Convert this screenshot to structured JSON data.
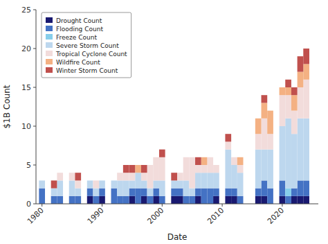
{
  "chart_data": {
    "type": "bar",
    "stacked": true,
    "legend": "upper left",
    "grid": false,
    "xlabel": "Date",
    "ylabel": "$1B Count",
    "x": [
      1980,
      1982,
      1983,
      1985,
      1986,
      1988,
      1989,
      1990,
      1992,
      1993,
      1994,
      1995,
      1996,
      1997,
      1998,
      1999,
      2000,
      2002,
      2003,
      2004,
      2005,
      2006,
      2007,
      2008,
      2009,
      2011,
      2012,
      2013,
      2016,
      2017,
      2018,
      2020,
      2021,
      2022,
      2023,
      2024
    ],
    "xlim": [
      1979,
      2026
    ],
    "xticks": [
      1980,
      1990,
      2000,
      2010,
      2020
    ],
    "ylim": [
      0,
      25
    ],
    "yticks": [
      0,
      5,
      10,
      15,
      20,
      25
    ],
    "series": [
      {
        "name": "Drought Count",
        "color": "#191970",
        "values": [
          0,
          0,
          0,
          0,
          0,
          1,
          0,
          1,
          0,
          0,
          0,
          1,
          0,
          1,
          0,
          1,
          0,
          1,
          1,
          0,
          0,
          1,
          0,
          0,
          1,
          1,
          1,
          0,
          1,
          1,
          0,
          1,
          0,
          1,
          1,
          1
        ]
      },
      {
        "name": "Flooding Count",
        "color": "#4472C4",
        "values": [
          2,
          1,
          1,
          1,
          1,
          1,
          1,
          1,
          2,
          1,
          1,
          1,
          2,
          1,
          1,
          1,
          1,
          1,
          1,
          1,
          1,
          1,
          2,
          2,
          1,
          1,
          1,
          1,
          1,
          2,
          2,
          2,
          1,
          1,
          2,
          2
        ]
      },
      {
        "name": "Freeze Count",
        "color": "#87CEEB",
        "values": [
          0,
          0,
          0,
          0,
          0,
          0,
          0,
          0,
          0,
          0,
          0,
          0,
          0,
          0,
          0,
          0,
          0,
          0,
          0,
          0,
          0,
          0,
          0,
          0,
          0,
          0,
          0,
          0,
          0,
          0,
          0,
          0,
          1,
          0,
          0,
          0
        ]
      },
      {
        "name": "Severe Storm Count",
        "color": "#BDD7EE",
        "values": [
          1,
          1,
          2,
          2,
          1,
          1,
          1,
          1,
          1,
          2,
          2,
          1,
          2,
          1,
          1,
          1,
          2,
          1,
          1,
          2,
          1,
          2,
          2,
          2,
          2,
          5,
          3,
          3,
          5,
          4,
          5,
          7,
          9,
          7,
          8,
          8
        ]
      },
      {
        "name": "Tropical Cyclone Count",
        "color": "#F2DCDB",
        "values": [
          0,
          0,
          1,
          1,
          1,
          0,
          1,
          0,
          0,
          1,
          1,
          1,
          0,
          1,
          3,
          3,
          3,
          0,
          1,
          3,
          4,
          1,
          1,
          2,
          1,
          1,
          1,
          1,
          2,
          4,
          2,
          4,
          3,
          3,
          4,
          5
        ]
      },
      {
        "name": "Wildfire Count",
        "color": "#F4B183",
        "values": [
          0,
          0,
          0,
          0,
          0,
          0,
          0,
          0,
          0,
          0,
          0,
          0,
          1,
          0,
          0,
          0,
          0,
          0,
          0,
          0,
          0,
          0,
          1,
          0,
          0,
          0,
          0,
          1,
          2,
          2,
          3,
          1,
          1,
          2,
          2,
          2
        ]
      },
      {
        "name": "Winter Storm Count",
        "color": "#C0504D",
        "values": [
          0,
          1,
          0,
          0,
          1,
          0,
          0,
          0,
          0,
          0,
          1,
          1,
          0,
          1,
          0,
          0,
          1,
          1,
          0,
          0,
          0,
          1,
          0,
          0,
          0,
          1,
          0,
          0,
          0,
          1,
          0,
          0,
          1,
          1,
          2,
          2
        ]
      }
    ]
  }
}
